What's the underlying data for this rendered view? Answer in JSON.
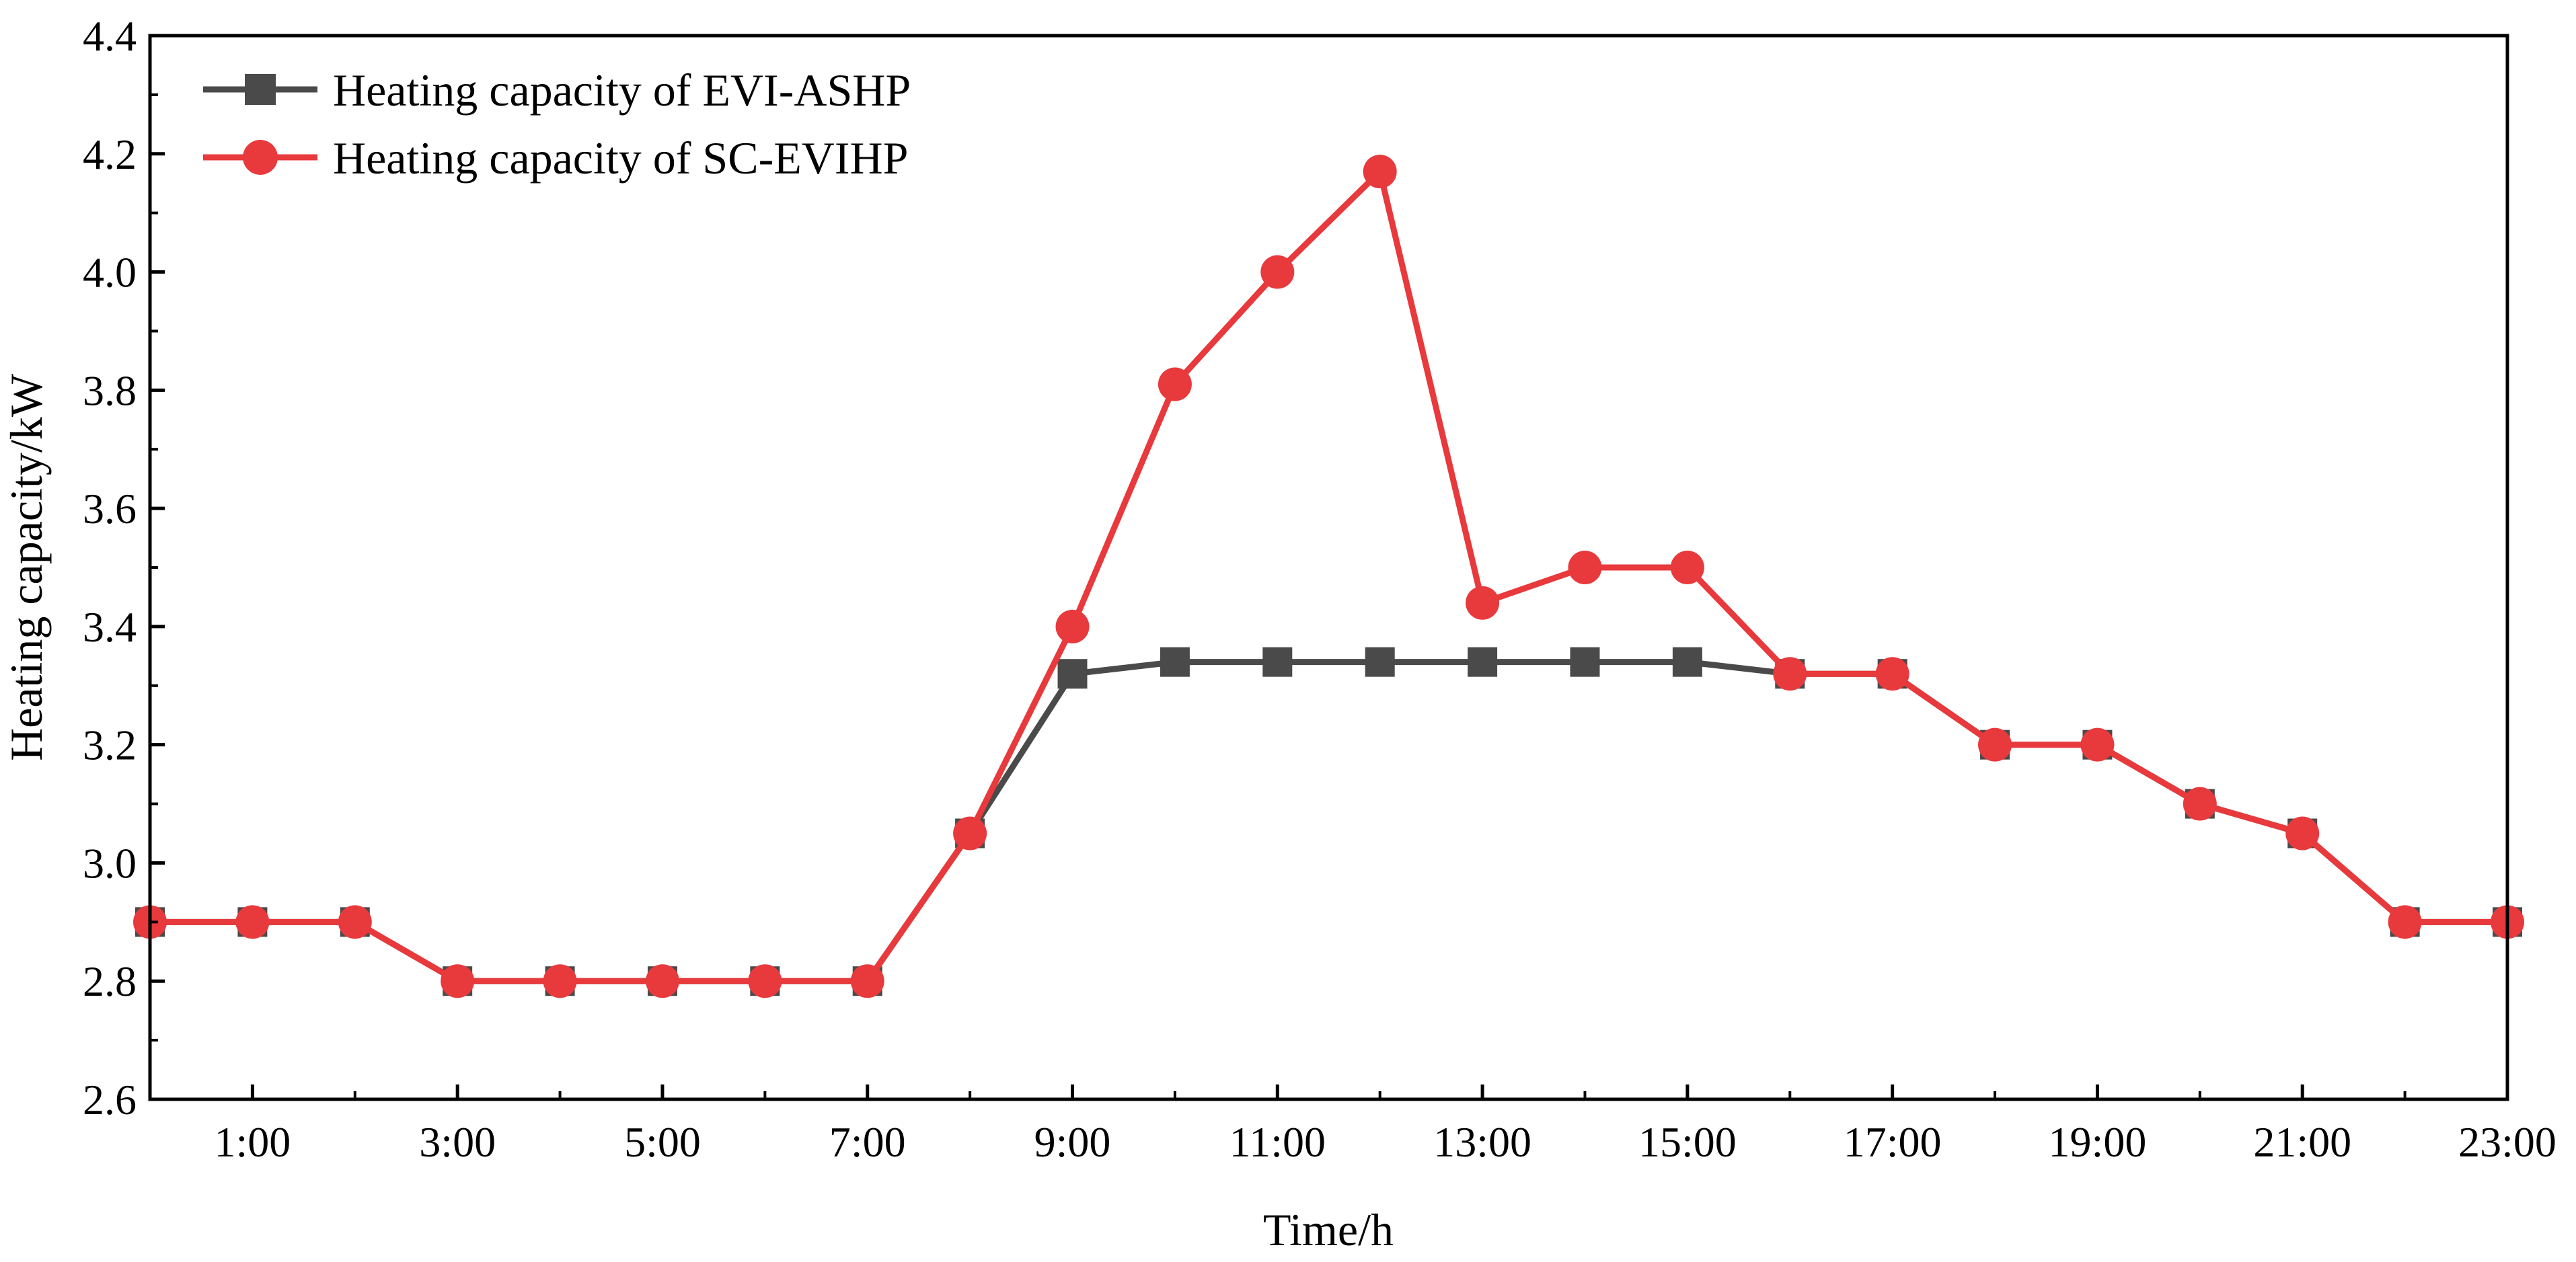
{
  "chart_data": {
    "type": "line",
    "title": "",
    "xlabel": "Time/h",
    "ylabel": "Heating capacity/kW",
    "x": [
      "0:00",
      "1:00",
      "2:00",
      "3:00",
      "4:00",
      "5:00",
      "6:00",
      "7:00",
      "8:00",
      "9:00",
      "10:00",
      "11:00",
      "12:00",
      "13:00",
      "14:00",
      "15:00",
      "16:00",
      "17:00",
      "18:00",
      "19:00",
      "20:00",
      "21:00",
      "22:00",
      "23:00"
    ],
    "x_tick_labels": [
      "1:00",
      "3:00",
      "5:00",
      "7:00",
      "9:00",
      "11:00",
      "13:00",
      "15:00",
      "17:00",
      "19:00",
      "21:00",
      "23:00"
    ],
    "y_ticks": [
      "2.6",
      "2.8",
      "3.0",
      "3.2",
      "3.4",
      "3.6",
      "3.8",
      "4.0",
      "4.2",
      "4.4"
    ],
    "ylim": [
      2.6,
      4.4
    ],
    "legend_position": "top-left",
    "grid": false,
    "series": [
      {
        "name": "Heating capacity of EVI-ASHP",
        "marker": "square",
        "color": "#4a4a4a",
        "values": [
          2.9,
          2.9,
          2.9,
          2.8,
          2.8,
          2.8,
          2.8,
          2.8,
          3.05,
          3.32,
          3.34,
          3.34,
          3.34,
          3.34,
          3.34,
          3.34,
          3.32,
          3.32,
          3.2,
          3.2,
          3.1,
          3.05,
          2.9,
          2.9
        ]
      },
      {
        "name": "Heating capacity of SC-EVIHP",
        "marker": "circle",
        "color": "#e8393c",
        "values": [
          2.9,
          2.9,
          2.9,
          2.8,
          2.8,
          2.8,
          2.8,
          2.8,
          3.05,
          3.4,
          3.81,
          4.0,
          4.17,
          3.44,
          3.5,
          3.5,
          3.32,
          3.32,
          3.2,
          3.2,
          3.1,
          3.05,
          2.9,
          2.9
        ]
      }
    ]
  }
}
